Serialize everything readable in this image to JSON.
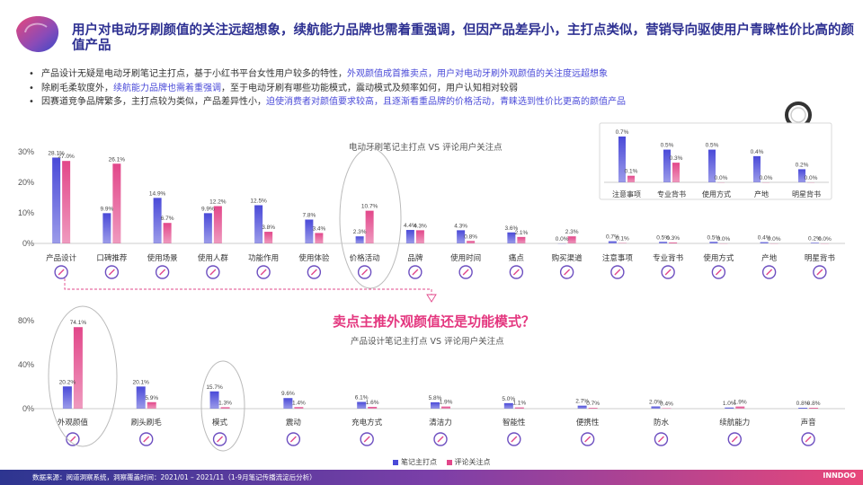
{
  "header": {
    "title": "用户对电动牙刷颜值的关注远超想象，续航能力品牌也需着重强调，但因产品差异小，主打点类似，营销导向驱使用户青睐性价比高的颜值产品"
  },
  "bullets": [
    {
      "plain": "产品设计无疑是电动牙刷笔记主打点，基于小红书平台女性用户较多的特性，",
      "hl": "外观颜值成首推卖点，用户对电动牙刷外观颜值的关注度远超想象",
      "tail": ""
    },
    {
      "plain": "除刷毛柔软度外，",
      "hl": "续航能力品牌也需着重强调",
      "tail": "，至于电动牙刷有哪些功能模式，震动模式及频率如何，用户认知相对较弱"
    },
    {
      "plain": "因赛道竞争品牌繁多，主打点较为类似，产品差异性小，",
      "hl": "迫使消费者对颜值要求较高，且逐渐看重品牌的价格活动，青睐选到性价比更高的颜值产品",
      "tail": ""
    }
  ],
  "question": "卖点主推外观颜值还是功能模式？",
  "legend": {
    "series1": "笔记主打点",
    "series2": "评论关注点"
  },
  "footer": {
    "source": "数据来源：阅道洞察系统，洞察覆盖时间：2021/01 – 2021/11（1-9月笔记传播流淀后分析）",
    "brand": "INNDOO"
  },
  "colors": {
    "series1": "#4a4ad8",
    "series2": "#e2478a",
    "title": "#2e3192",
    "accent": "#e4377f"
  },
  "chart_data": [
    {
      "type": "bar",
      "title": "电动牙刷笔记主打点 VS 评论用户关注点",
      "categories": [
        "产品设计",
        "口碑推荐",
        "使用场景",
        "使用人群",
        "功能作用",
        "使用体验",
        "价格活动",
        "品牌",
        "使用时间",
        "痛点",
        "购买渠道",
        "注意事项",
        "专业背书",
        "使用方式",
        "产地",
        "明星背书"
      ],
      "icons": [
        "design-icon",
        "chat-icon",
        "bathroom-icon",
        "people-icon",
        "tooth-function-icon",
        "experience-icon",
        "price-tag-icon",
        "brand-r-icon",
        "clock-icon",
        "target-icon",
        "shop-icon",
        "warning-icon",
        "doctor-icon",
        "used-icon",
        "location-pin-icon",
        "star-icon"
      ],
      "series": [
        {
          "name": "笔记主打点",
          "values": [
            28.1,
            9.9,
            14.9,
            9.9,
            12.5,
            7.8,
            2.3,
            4.4,
            4.3,
            3.6,
            0.0,
            0.7,
            0.5,
            0.5,
            0.4,
            0.2
          ]
        },
        {
          "name": "评论关注点",
          "values": [
            27.0,
            26.1,
            6.7,
            12.2,
            3.8,
            3.4,
            10.7,
            4.3,
            0.8,
            2.1,
            2.3,
            0.1,
            0.3,
            0.0,
            0.0,
            0.0
          ]
        }
      ],
      "yticks": [
        "0%",
        "10%",
        "20%",
        "30%"
      ],
      "ylim": [
        0,
        30
      ],
      "highlight": "价格活动"
    },
    {
      "type": "bar",
      "title": "",
      "categories": [
        "注意事项",
        "专业背书",
        "使用方式",
        "产地",
        "明星背书"
      ],
      "series": [
        {
          "name": "笔记主打点",
          "values": [
            0.7,
            0.5,
            0.5,
            0.4,
            0.2
          ]
        },
        {
          "name": "评论关注点",
          "values": [
            0.1,
            0.3,
            0.0,
            0.0,
            0.0
          ]
        }
      ],
      "ylim": [
        0,
        0.7
      ]
    },
    {
      "type": "bar",
      "title": "产品设计笔记主打点 VS 评论用户关注点",
      "categories": [
        "外观颜值",
        "刷头刷毛",
        "模式",
        "震动",
        "充电方式",
        "清洁力",
        "智能性",
        "便携性",
        "防水",
        "续航能力",
        "声音"
      ],
      "icons": [
        "palette-icon",
        "brush-head-icon",
        "mode-icon",
        "vibration-icon",
        "charging-icon",
        "cleaning-icon",
        "smart-icon",
        "portable-icon",
        "waterproof-icon",
        "battery-icon",
        "sound-icon"
      ],
      "series": [
        {
          "name": "笔记主打点",
          "values": [
            20.2,
            20.1,
            15.7,
            9.6,
            6.1,
            5.8,
            5.0,
            2.7,
            2.0,
            1.0,
            0.8
          ]
        },
        {
          "name": "评论关注点",
          "values": [
            74.1,
            5.9,
            1.3,
            1.4,
            1.6,
            1.9,
            1.1,
            0.7,
            0.4,
            1.9,
            0.8
          ]
        }
      ],
      "yticks": [
        "0%",
        "40%",
        "80%"
      ],
      "ylim": [
        0,
        80
      ],
      "highlight": [
        "外观颜值",
        "模式"
      ]
    }
  ]
}
